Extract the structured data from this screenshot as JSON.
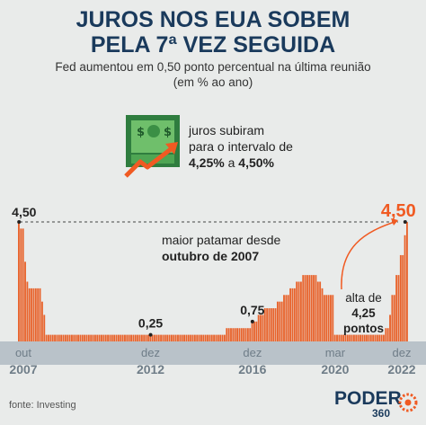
{
  "title": [
    "JUROS NOS EUA SOBEM",
    "PELA 7ª VEZ SEGUIDA"
  ],
  "subtitle": [
    "Fed aumentou em 0,50 ponto percentual na última reunião",
    "(em % ao ano)"
  ],
  "callout": {
    "line1": "juros subiram",
    "line2": "para o intervalo de",
    "from": "4,25%",
    "connector": " a ",
    "to": "4,50%"
  },
  "annotation_max": {
    "line1": "maior patamar desde",
    "line2": "outubro de 2007"
  },
  "annotation_rise": {
    "line1": "alta de",
    "line2": "4,25",
    "line3": "pontos"
  },
  "source": "fonte: Investing",
  "logo": {
    "word": "PODER",
    "number": "360"
  },
  "colors": {
    "bars": "#e8632c",
    "axis_band": "#b9c2c9",
    "label_text": "#7d8b96",
    "title": "#1a3a5c",
    "highlight": "#f05a22"
  },
  "chart_data": {
    "type": "bar",
    "x_start": "2007-10",
    "x_end": "2022-12",
    "step": "month",
    "ylim": [
      0,
      4.5
    ],
    "value_labels": [
      {
        "text": "4,50",
        "x": "2007-10",
        "value": 4.5
      },
      {
        "text": "0,25",
        "x": "2012-12",
        "value": 0.25
      },
      {
        "text": "0,75",
        "x": "2016-12",
        "value": 0.75
      },
      {
        "text": "4,50",
        "x": "2022-12",
        "value": 4.5,
        "highlight": true
      }
    ],
    "x_ticks": [
      {
        "month": "out",
        "year": "2007",
        "x": "2007-10"
      },
      {
        "month": "dez",
        "year": "2012",
        "x": "2012-12"
      },
      {
        "month": "dez",
        "year": "2016",
        "x": "2016-12"
      },
      {
        "month": "mar",
        "year": "2020",
        "x": "2020-03"
      },
      {
        "month": "dez",
        "year": "2022",
        "x": "2022-12"
      }
    ],
    "segments": [
      {
        "from": "2007-10",
        "values": [
          4.5,
          4.25,
          4.25,
          3.0,
          2.25,
          2.0,
          2.0,
          2.0,
          2.0,
          2.0,
          2.0,
          1.5,
          1.0,
          0.25
        ]
      },
      {
        "from": "2008-12",
        "to": "2015-11",
        "value": 0.25
      },
      {
        "from": "2015-12",
        "to": "2016-11",
        "value": 0.5
      },
      {
        "from": "2016-12",
        "to": "2017-02",
        "value": 0.75
      },
      {
        "from": "2017-03",
        "to": "2017-05",
        "value": 1.0
      },
      {
        "from": "2017-06",
        "to": "2017-11",
        "value": 1.25
      },
      {
        "from": "2017-12",
        "to": "2018-02",
        "value": 1.5
      },
      {
        "from": "2018-03",
        "to": "2018-05",
        "value": 1.75
      },
      {
        "from": "2018-06",
        "to": "2018-08",
        "value": 2.0
      },
      {
        "from": "2018-09",
        "to": "2018-11",
        "value": 2.25
      },
      {
        "from": "2018-12",
        "to": "2019-06",
        "value": 2.5
      },
      {
        "from": "2019-07",
        "to": "2019-08",
        "value": 2.25
      },
      {
        "from": "2019-09",
        "values": [
          2.0,
          1.75,
          1.75,
          1.75,
          1.75,
          1.75
        ]
      },
      {
        "from": "2020-03",
        "to": "2022-02",
        "value": 0.25
      },
      {
        "from": "2022-03",
        "values": [
          0.5,
          0.5,
          1.0,
          1.75,
          1.75,
          2.5,
          2.5,
          3.25,
          3.25,
          4.0,
          4.5
        ]
      }
    ]
  }
}
